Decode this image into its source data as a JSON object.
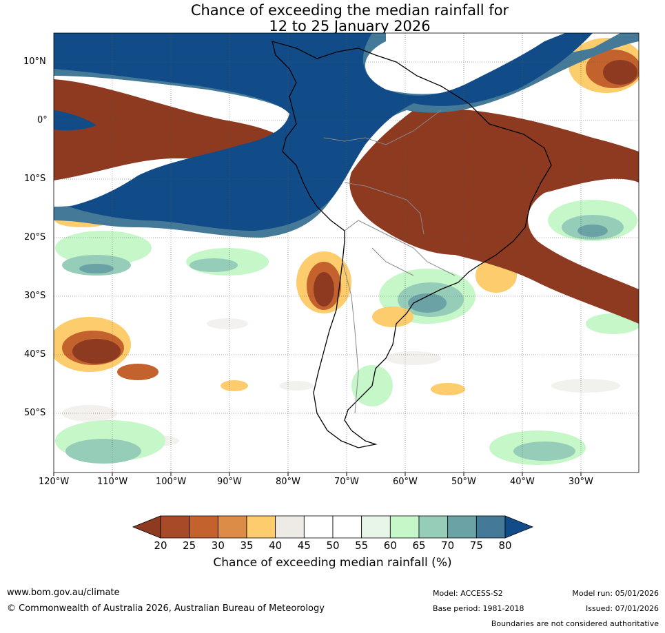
{
  "title": {
    "line1": "Chance of exceeding the median rainfall for",
    "line2": "12 to 25 January 2026"
  },
  "axes": {
    "lat_labels": [
      "10°N",
      "0°",
      "10°S",
      "20°S",
      "30°S",
      "40°S",
      "50°S"
    ],
    "lon_labels": [
      "120°W",
      "110°W",
      "100°W",
      "90°W",
      "80°W",
      "70°W",
      "60°W",
      "50°W",
      "40°W",
      "30°W"
    ]
  },
  "colorbar": {
    "title": "Chance of exceeding median rainfall (%)",
    "tick_labels": [
      "20",
      "25",
      "30",
      "35",
      "40",
      "45",
      "50",
      "55",
      "60",
      "65",
      "70",
      "75",
      "80"
    ],
    "colors": {
      "below_20": "#8e3a20",
      "c20_25": "#a84a28",
      "c25_30": "#c4622e",
      "c30_35": "#dc8c46",
      "c35_40": "#fdcc6c",
      "c40_45": "#eeebe6",
      "c45_50": "#ffffff",
      "c50_55": "#ffffff",
      "c55_60": "#e8f6ea",
      "c60_65": "#c6f7c8",
      "c65_70": "#96cdb8",
      "c70_75": "#6aa2a6",
      "c75_80": "#447a98",
      "above_80": "#124c88"
    }
  },
  "map": {
    "region": "South America and surrounding oceans",
    "lon_range": [
      -120,
      -20
    ],
    "lat_range": [
      -60,
      15
    ]
  },
  "footer": {
    "website": "www.bom.gov.au/climate",
    "copyright": "© Commonwealth of Australia 2026, Australian Bureau of Meteorology",
    "model": "Model: ACCESS-S2",
    "base_period": "Base period: 1981-2018",
    "model_run": "Model run: 05/01/2026",
    "issued": "Issued: 07/01/2026",
    "disclaimer": "Boundaries are not considered authoritative"
  }
}
